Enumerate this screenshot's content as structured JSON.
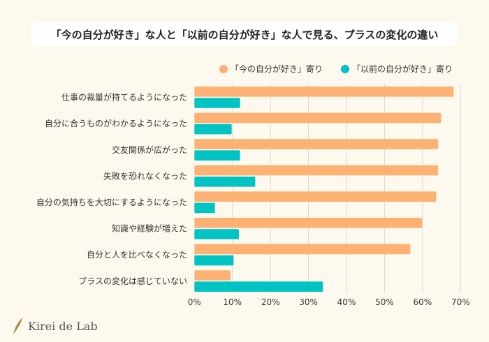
{
  "chart_data": {
    "type": "bar",
    "orientation": "horizontal",
    "title": "「今の自分が好き」な人と「以前の自分が好き」な人で見る、プラスの変化の違い",
    "categories": [
      "仕事の裁量が持てるようになった",
      "自分に合うものがわかるようになった",
      "交友関係が広がった",
      "失敗を恐れなくなった",
      "自分の気持ちを大切にするようになった",
      "知識や経験が増えた",
      "自分と人を比べなくなった",
      "プラスの変化は感じていない"
    ],
    "series": [
      {
        "name": "「今の自分が好き」寄り",
        "color": "#fdb273",
        "values": [
          68.2,
          64.9,
          64.1,
          64.1,
          63.6,
          59.9,
          56.8,
          9.5
        ]
      },
      {
        "name": "「以前の自分が好き」寄り",
        "color": "#00c4c4",
        "values": [
          12.0,
          9.8,
          12.0,
          16.0,
          5.4,
          11.7,
          10.3,
          33.8
        ]
      }
    ],
    "xlim": [
      0,
      70
    ],
    "xticks": [
      "0%",
      "10%",
      "20%",
      "30%",
      "40%",
      "50%",
      "60%",
      "70%"
    ],
    "grid": true,
    "legend_placement": "top-right"
  },
  "brand": {
    "name": "Kirei de Lab",
    "icon": "feather-icon",
    "color": "#b08a4a"
  }
}
